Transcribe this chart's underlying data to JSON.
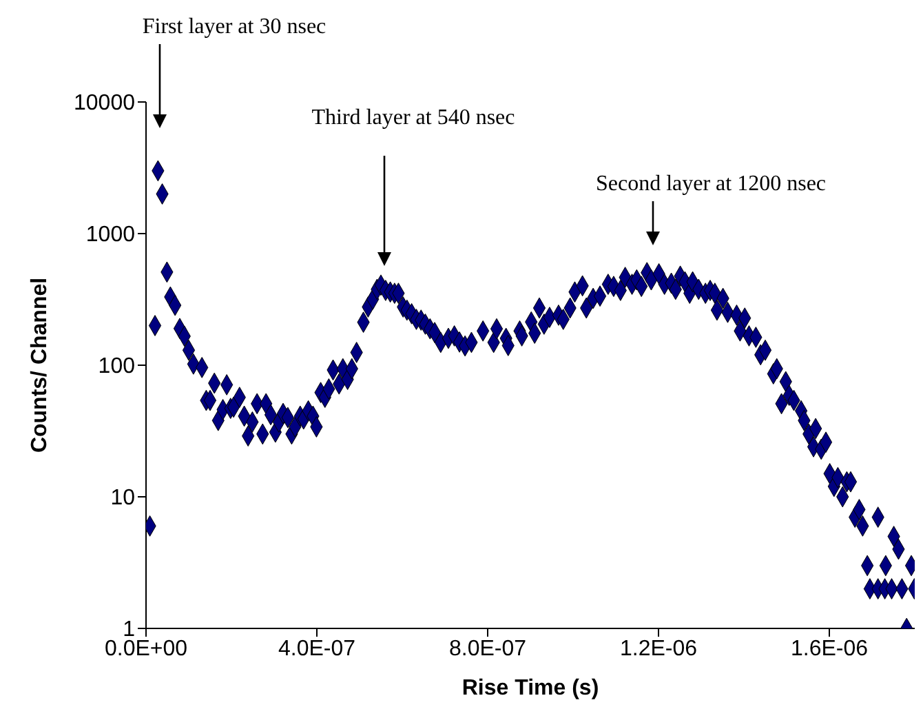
{
  "chart_data": {
    "type": "scatter",
    "xlabel": "Rise Time (s)",
    "ylabel": "Counts/ Channel",
    "log": "y",
    "marker": "diamond",
    "xlim": [
      0,
      1.8e-06
    ],
    "xticks": [
      {
        "value": 0,
        "label": "0.0E+00"
      },
      {
        "value": 4e-07,
        "label": "4.0E-07"
      },
      {
        "value": 8e-07,
        "label": "8.0E-07"
      },
      {
        "value": 1.2e-06,
        "label": "1.2E-06"
      },
      {
        "value": 1.6e-06,
        "label": "1.6E-06"
      }
    ],
    "ylim": [
      1,
      10000
    ],
    "yticks": [
      1,
      10,
      100,
      1000,
      10000
    ],
    "series": [
      {
        "color": "#000080",
        "x": [
          9e-09,
          2.1e-08,
          2.8e-08,
          3.8e-08,
          4.9e-08,
          5.7e-08,
          6.8e-08,
          7.9e-08,
          9e-08,
          1e-07,
          1.11e-07,
          1.31e-07,
          1.41e-07,
          1.5e-07,
          1.6e-07,
          1.69e-07,
          1.8e-07,
          1.89e-07,
          1.98e-07,
          2.05e-07,
          2.19e-07,
          2.3e-07,
          2.39e-07,
          2.49e-07,
          2.6e-07,
          2.73e-07,
          2.81e-07,
          2.92e-07,
          3.03e-07,
          3.11e-07,
          3.21e-07,
          3.32e-07,
          3.41e-07,
          3.49e-07,
          3.61e-07,
          3.69e-07,
          3.8e-07,
          3.91e-07,
          3.99e-07,
          4.09e-07,
          4.19e-07,
          4.28e-07,
          4.38e-07,
          4.52e-07,
          4.61e-07,
          4.72e-07,
          4.82e-07,
          4.93e-07,
          5.09e-07,
          5.2e-07,
          5.31e-07,
          5.41e-07,
          5.5e-07,
          5.61e-07,
          5.72e-07,
          5.82e-07,
          5.91e-07,
          6.02e-07,
          6.11e-07,
          6.22e-07,
          6.33e-07,
          6.44e-07,
          6.54e-07,
          6.65e-07,
          6.76e-07,
          6.9e-07,
          7.08e-07,
          7.22e-07,
          7.34e-07,
          7.47e-07,
          7.62e-07,
          7.89e-07,
          8.14e-07,
          8.21e-07,
          8.43e-07,
          8.48e-07,
          8.75e-07,
          8.8e-07,
          9.02e-07,
          9.1e-07,
          9.21e-07,
          9.32e-07,
          9.45e-07,
          9.66e-07,
          9.77e-07,
          9.93e-07,
          1.004e-06,
          1.022e-06,
          1.031e-06,
          1.047e-06,
          1.063e-06,
          1.082e-06,
          1.095e-06,
          1.111e-06,
          1.122e-06,
          1.138e-06,
          1.149e-06,
          1.16e-06,
          1.173e-06,
          1.183e-06,
          1.201e-06,
          1.214e-06,
          1.23e-06,
          1.24e-06,
          1.251e-06,
          1.262e-06,
          1.273e-06,
          1.28e-06,
          1.294e-06,
          1.31e-06,
          1.321e-06,
          1.332e-06,
          1.337e-06,
          1.351e-06,
          1.362e-06,
          1.383e-06,
          1.391e-06,
          1.402e-06,
          1.412e-06,
          1.428e-06,
          1.439e-06,
          1.45e-06,
          1.469e-06,
          1.477e-06,
          1.488e-06,
          1.498e-06,
          1.506e-06,
          1.517e-06,
          1.534e-06,
          1.541e-06,
          1.552e-06,
          1.563e-06,
          1.568e-06,
          1.581e-06,
          1.592e-06,
          1.601e-06,
          1.611e-06,
          1.62e-06,
          1.631e-06,
          1.641e-06,
          1.65e-06,
          1.66e-06,
          1.67e-06,
          1.678e-06,
          1.689e-06,
          1.695e-06,
          1.714e-06,
          1.714e-06,
          1.73e-06,
          1.732e-06,
          1.746e-06,
          1.751e-06,
          1.762e-06,
          1.77e-06,
          1.781e-06,
          1.792e-06,
          1.799e-06
        ],
        "values": [
          6,
          200,
          3000,
          2000,
          510,
          330,
          285,
          190,
          166,
          130,
          102,
          96,
          54,
          54,
          73,
          38,
          46,
          71,
          47,
          48,
          57,
          41,
          29,
          37,
          51,
          30,
          51,
          42,
          31,
          37,
          43,
          40,
          30,
          34,
          41,
          39,
          45,
          41,
          34,
          62,
          57,
          66,
          92,
          72,
          94,
          78,
          94,
          125,
          212,
          277,
          317,
          377,
          406,
          370,
          360,
          352,
          352,
          277,
          262,
          246,
          223,
          220,
          205,
          189,
          177,
          149,
          160,
          167,
          150,
          140,
          149,
          182,
          149,
          189,
          160,
          141,
          182,
          167,
          213,
          175,
          272,
          205,
          231,
          240,
          223,
          272,
          360,
          401,
          272,
          322,
          335,
          412,
          397,
          370,
          465,
          412,
          445,
          397,
          505,
          445,
          495,
          412,
          420,
          377,
          475,
          430,
          352,
          430,
          377,
          352,
          370,
          352,
          262,
          322,
          252,
          240,
          182,
          228,
          167,
          163,
          120,
          130,
          86,
          94,
          51,
          75,
          59,
          54,
          45,
          38,
          30,
          24,
          33,
          23,
          26,
          15,
          12,
          14,
          10,
          13,
          13,
          7,
          8,
          6,
          3,
          2,
          7,
          2,
          2,
          3,
          2,
          5,
          4,
          2,
          1,
          3,
          2
        ]
      }
    ],
    "annotations": [
      "First layer at 30 nsec",
      "Third layer at 540 nsec",
      "Second layer at 1200 nsec"
    ]
  }
}
